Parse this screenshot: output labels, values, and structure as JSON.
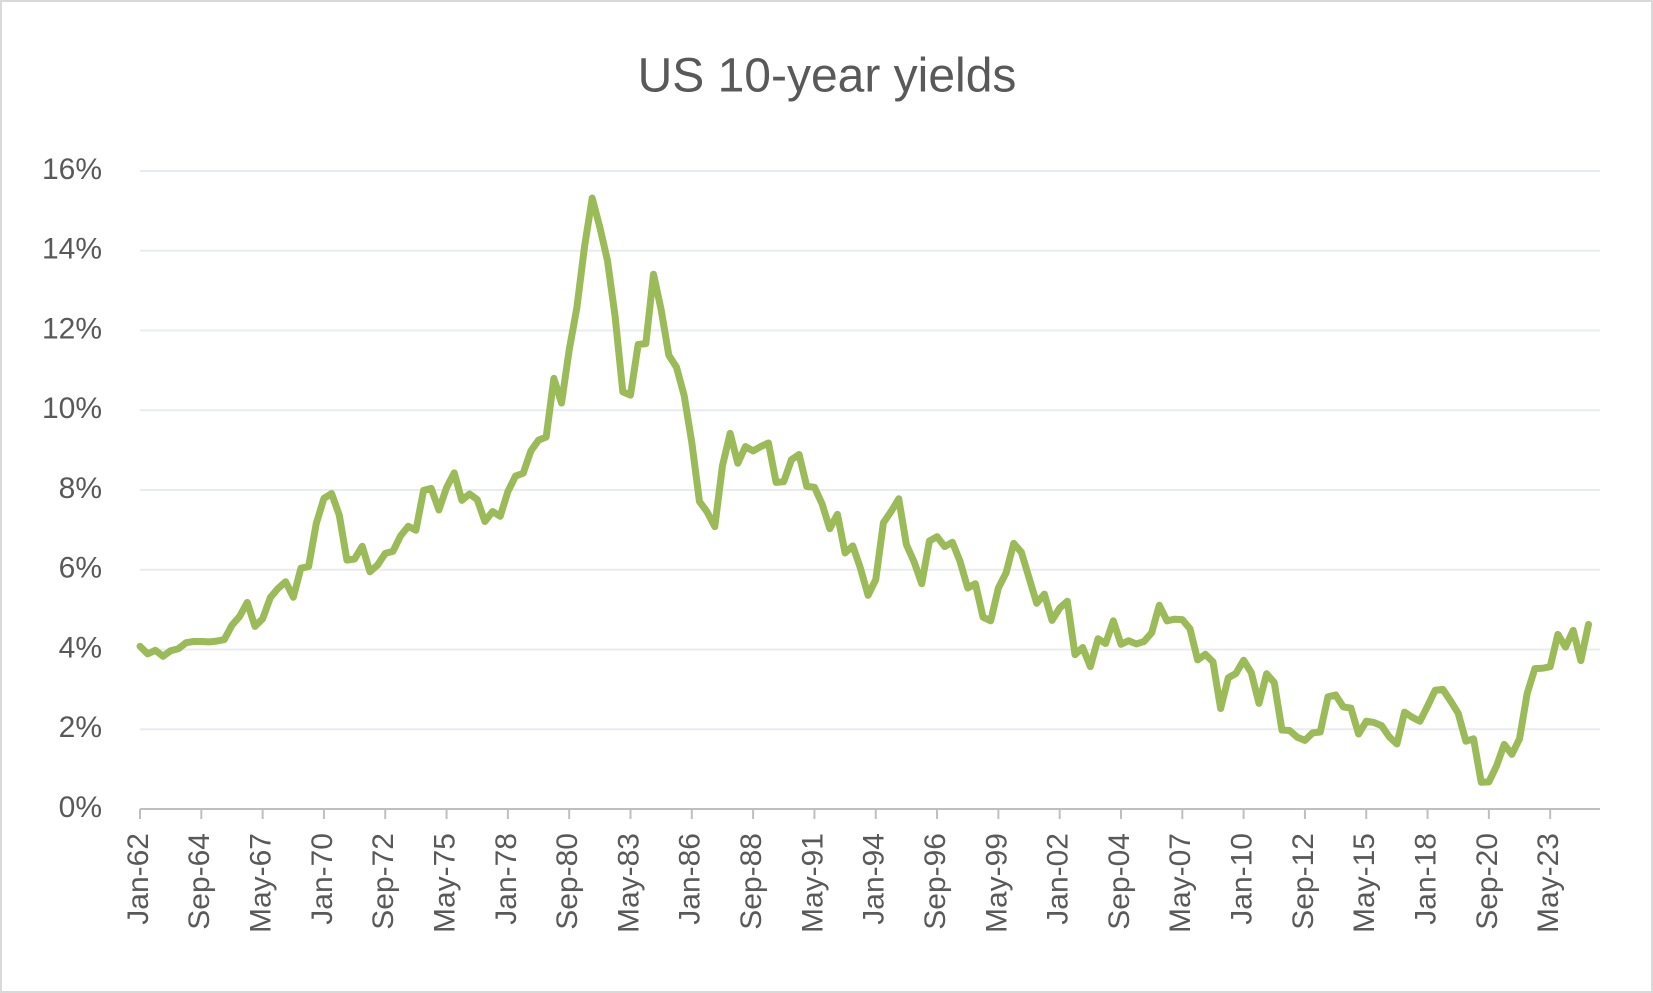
{
  "chart_data": {
    "type": "line",
    "title": "US 10-year yields",
    "categories": [
      "Jan-62",
      null,
      null,
      null,
      null,
      null,
      null,
      null,
      "Sep-64",
      null,
      null,
      null,
      null,
      null,
      null,
      null,
      "May-67",
      null,
      null,
      null,
      null,
      null,
      null,
      null,
      "Jan-70",
      null,
      null,
      null,
      null,
      null,
      null,
      null,
      "Sep-72",
      null,
      null,
      null,
      null,
      null,
      null,
      null,
      "May-75",
      null,
      null,
      null,
      null,
      null,
      null,
      null,
      "Jan-78",
      null,
      null,
      null,
      null,
      null,
      null,
      null,
      "Sep-80",
      null,
      null,
      null,
      null,
      null,
      null,
      null,
      "May-83",
      null,
      null,
      null,
      null,
      null,
      null,
      null,
      "Jan-86",
      null,
      null,
      null,
      null,
      null,
      null,
      null,
      "Sep-88",
      null,
      null,
      null,
      null,
      null,
      null,
      null,
      "May-91",
      null,
      null,
      null,
      null,
      null,
      null,
      null,
      "Jan-94",
      null,
      null,
      null,
      null,
      null,
      null,
      null,
      "Sep-96",
      null,
      null,
      null,
      null,
      null,
      null,
      null,
      "May-99",
      null,
      null,
      null,
      null,
      null,
      null,
      null,
      "Jan-02",
      null,
      null,
      null,
      null,
      null,
      null,
      null,
      "Sep-04",
      null,
      null,
      null,
      null,
      null,
      null,
      null,
      "May-07",
      null,
      null,
      null,
      null,
      null,
      null,
      null,
      "Jan-10",
      null,
      null,
      null,
      null,
      null,
      null,
      null,
      "Sep-12",
      null,
      null,
      null,
      null,
      null,
      null,
      null,
      "May-15",
      null,
      null,
      null,
      null,
      null,
      null,
      null,
      "Jan-18",
      null,
      null,
      null,
      null,
      null,
      null,
      null,
      "Sep-20",
      null,
      null,
      null,
      null,
      null,
      null,
      null,
      "May-23",
      null,
      null,
      null,
      null,
      null
    ],
    "series": [
      {
        "color": "#9bbb59",
        "values": [
          4.08,
          3.89,
          3.98,
          3.83,
          3.97,
          4.02,
          4.17,
          4.2,
          4.2,
          4.19,
          4.21,
          4.25,
          4.61,
          4.83,
          5.18,
          4.58,
          4.77,
          5.3,
          5.53,
          5.7,
          5.31,
          6.04,
          6.08,
          7.16,
          7.79,
          7.91,
          7.37,
          6.24,
          6.27,
          6.59,
          5.95,
          6.12,
          6.41,
          6.46,
          6.85,
          7.09,
          6.99,
          7.99,
          8.04,
          7.5,
          8.06,
          8.43,
          7.74,
          7.9,
          7.76,
          7.21,
          7.46,
          7.34,
          7.96,
          8.35,
          8.42,
          8.98,
          9.25,
          9.33,
          10.8,
          10.18,
          11.51,
          12.57,
          14.1,
          15.32,
          14.59,
          13.75,
          12.34,
          10.46,
          10.38,
          11.65,
          11.67,
          13.41,
          12.52,
          11.38,
          11.08,
          10.37,
          9.19,
          7.71,
          7.45,
          7.08,
          8.61,
          9.42,
          8.67,
          9.09,
          8.98,
          9.09,
          9.18,
          8.19,
          8.21,
          8.76,
          8.89,
          8.09,
          8.07,
          7.65,
          7.03,
          7.39,
          6.42,
          6.6,
          6.04,
          5.36,
          5.75,
          7.18,
          7.46,
          7.78,
          6.63,
          6.2,
          5.65,
          6.72,
          6.83,
          6.58,
          6.69,
          6.21,
          5.54,
          5.65,
          4.81,
          4.72,
          5.54,
          5.92,
          6.66,
          6.44,
          5.8,
          5.16,
          5.39,
          4.73,
          5.04,
          5.21,
          3.87,
          4.05,
          3.57,
          4.27,
          4.15,
          4.72,
          4.13,
          4.22,
          4.14,
          4.2,
          4.42,
          5.11,
          4.72,
          4.76,
          4.75,
          4.52,
          3.74,
          3.88,
          3.69,
          2.52,
          3.29,
          3.4,
          3.73,
          3.42,
          2.65,
          3.39,
          3.17,
          1.98,
          1.97,
          1.8,
          1.72,
          1.91,
          1.93,
          2.81,
          2.86,
          2.56,
          2.53,
          1.88,
          2.2,
          2.17,
          2.09,
          1.81,
          1.63,
          2.43,
          2.3,
          2.2,
          2.58,
          2.98,
          3.0,
          2.71,
          2.4,
          1.7,
          1.76,
          0.67,
          0.68,
          1.08,
          1.62,
          1.37,
          1.76,
          2.9,
          3.52,
          3.53,
          3.57,
          4.38,
          4.06,
          4.48,
          3.72,
          4.63
        ]
      }
    ],
    "ylim": [
      0,
      16
    ],
    "yticks": [
      {
        "value": 0,
        "label": "0%"
      },
      {
        "value": 2,
        "label": "2%"
      },
      {
        "value": 4,
        "label": "4%"
      },
      {
        "value": 6,
        "label": "6%"
      },
      {
        "value": 8,
        "label": "8%"
      },
      {
        "value": 10,
        "label": "10%"
      },
      {
        "value": 12,
        "label": "12%"
      },
      {
        "value": 14,
        "label": "14%"
      },
      {
        "value": 16,
        "label": "16%"
      }
    ],
    "grid": true
  }
}
